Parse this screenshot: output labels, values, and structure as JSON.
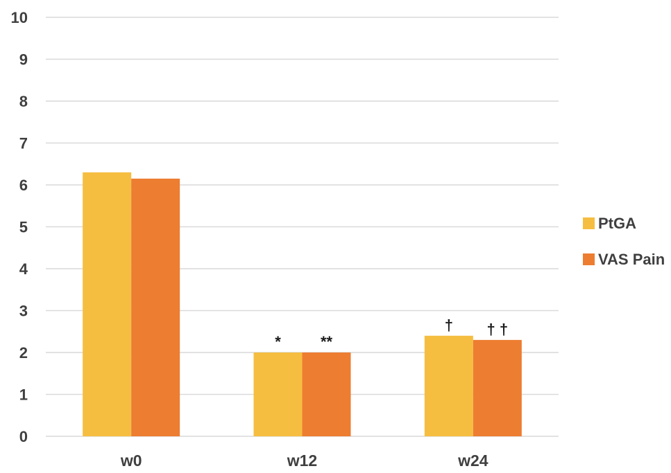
{
  "chart_data": {
    "type": "bar",
    "title": "",
    "xlabel": "",
    "ylabel": "",
    "ylim": [
      0,
      10
    ],
    "yticks": [
      "0",
      "1",
      "2",
      "3",
      "4",
      "5",
      "6",
      "7",
      "8",
      "9",
      "10"
    ],
    "categories": [
      "w0",
      "w12",
      "w24"
    ],
    "grid": true,
    "legend_position": "right",
    "series": [
      {
        "name": "PtGA",
        "color": "#F5BE41",
        "values": [
          6.3,
          2.0,
          2.4
        ],
        "annotations": [
          "",
          "*",
          "†"
        ]
      },
      {
        "name": "VAS Pain",
        "color": "#ED7D31",
        "values": [
          6.15,
          2.0,
          2.3
        ],
        "annotations": [
          "",
          "**",
          "† †"
        ]
      }
    ]
  }
}
